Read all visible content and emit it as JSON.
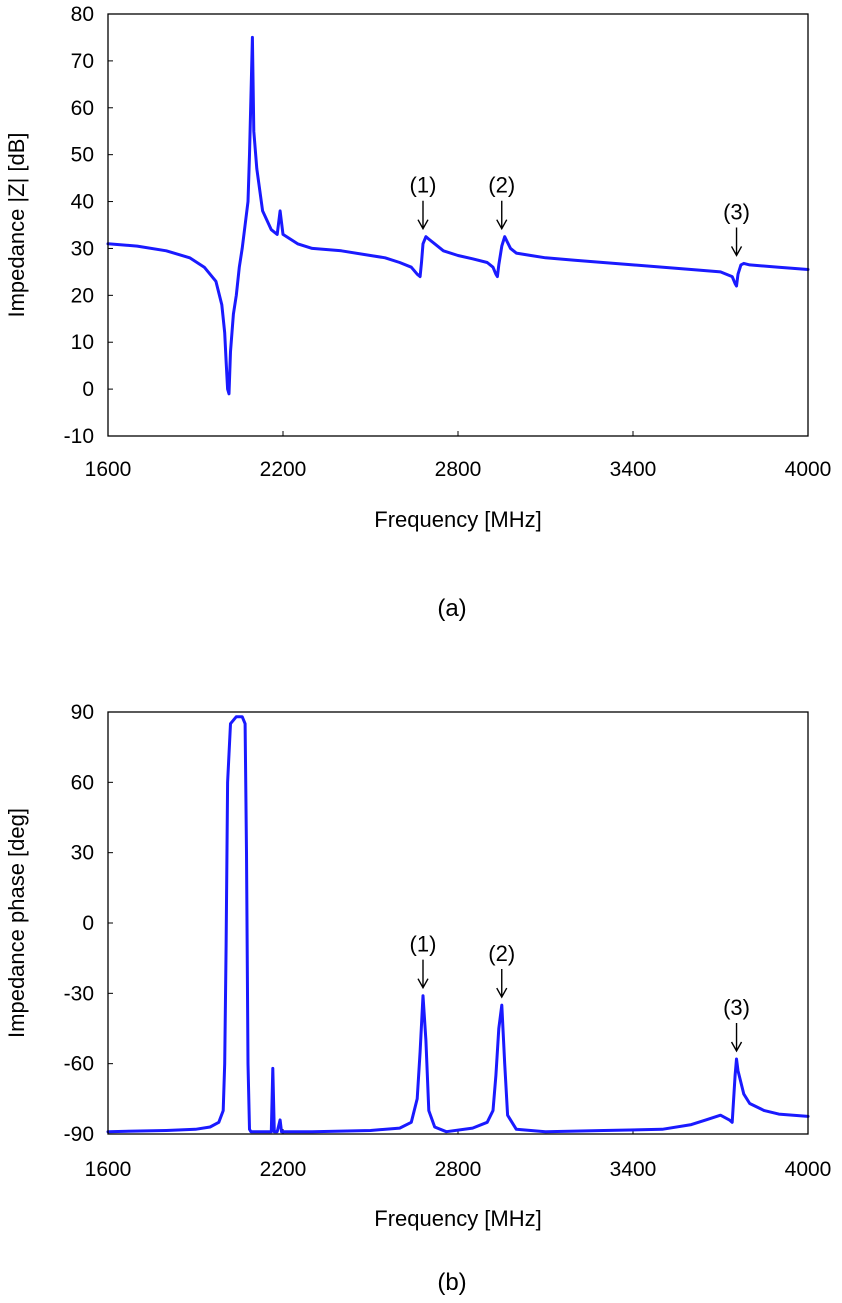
{
  "chart_data": [
    {
      "type": "line",
      "caption": "(a)",
      "xlabel": "Frequency [MHz]",
      "ylabel": "Impedance |Z| [dB]",
      "xlim": [
        1600,
        4000
      ],
      "ylim": [
        -10,
        80
      ],
      "xticks": [
        1600,
        2200,
        2800,
        3400,
        4000
      ],
      "yticks": [
        -10,
        0,
        10,
        20,
        30,
        40,
        50,
        60,
        70,
        80
      ],
      "grid": false,
      "line_color": "#1a1aff",
      "series": [
        {
          "x": [
            1600,
            1700,
            1800,
            1880,
            1930,
            1970,
            1990,
            2000,
            2005,
            2010,
            2015,
            2020,
            2030,
            2040,
            2050,
            2060,
            2070,
            2080,
            2085,
            2090,
            2095,
            2100,
            2110,
            2130,
            2160,
            2180,
            2190,
            2200,
            2250,
            2300,
            2400,
            2500,
            2550,
            2600,
            2640,
            2660,
            2670,
            2675,
            2680,
            2690,
            2700,
            2720,
            2750,
            2800,
            2850,
            2900,
            2920,
            2930,
            2935,
            2940,
            2950,
            2960,
            2980,
            3000,
            3050,
            3100,
            3200,
            3400,
            3600,
            3700,
            3740,
            3750,
            3755,
            3760,
            3770,
            3780,
            3800,
            3900,
            4000
          ],
          "y": [
            31,
            30.5,
            29.5,
            28,
            26,
            23,
            18,
            12,
            6,
            0,
            -1,
            8,
            16,
            20,
            26,
            30,
            35,
            40,
            50,
            62,
            75,
            55,
            47,
            38,
            34,
            33,
            38,
            33,
            31,
            30,
            29.5,
            28.5,
            28,
            27,
            26,
            24.5,
            24,
            27,
            31,
            32.5,
            32,
            31,
            29.5,
            28.5,
            27.8,
            27,
            26,
            24.5,
            24,
            26.5,
            30.5,
            32.5,
            30,
            29,
            28.5,
            28,
            27.5,
            26.5,
            25.5,
            25,
            24,
            22.5,
            22,
            24.5,
            26.5,
            26.8,
            26.5,
            26,
            25.5
          ]
        }
      ],
      "annotations": [
        {
          "label": "(1)",
          "x": 2680
        },
        {
          "label": "(2)",
          "x": 2950
        },
        {
          "label": "(3)",
          "x": 3755
        }
      ]
    },
    {
      "type": "line",
      "caption": "(b)",
      "xlabel": "Frequency [MHz]",
      "ylabel": "Impedance phase [deg]",
      "xlim": [
        1600,
        4000
      ],
      "ylim": [
        -90,
        90
      ],
      "xticks": [
        1600,
        2200,
        2800,
        3400,
        4000
      ],
      "yticks": [
        -90,
        -60,
        -30,
        0,
        30,
        60,
        90
      ],
      "grid": false,
      "line_color": "#1a1aff",
      "series": [
        {
          "x": [
            1600,
            1800,
            1900,
            1950,
            1980,
            1995,
            2000,
            2005,
            2010,
            2020,
            2040,
            2060,
            2070,
            2075,
            2080,
            2085,
            2090,
            2100,
            2150,
            2160,
            2165,
            2170,
            2175,
            2180,
            2190,
            2195,
            2200,
            2300,
            2500,
            2600,
            2640,
            2660,
            2670,
            2680,
            2690,
            2700,
            2720,
            2760,
            2850,
            2900,
            2920,
            2930,
            2940,
            2950,
            2960,
            2970,
            3000,
            3100,
            3300,
            3500,
            3600,
            3650,
            3700,
            3730,
            3740,
            3750,
            3755,
            3760,
            3780,
            3800,
            3850,
            3900,
            4000
          ],
          "y": [
            -89,
            -88.5,
            -88,
            -87,
            -85,
            -80,
            -60,
            -10,
            60,
            85,
            88,
            88,
            85,
            30,
            -60,
            -88,
            -89,
            -89,
            -89,
            -89,
            -62,
            -89,
            -89,
            -89,
            -84,
            -89,
            -89,
            -89,
            -88.5,
            -87.5,
            -85,
            -75,
            -55,
            -31,
            -50,
            -80,
            -87,
            -89,
            -87.5,
            -85,
            -80,
            -65,
            -45,
            -35,
            -60,
            -82,
            -88,
            -89,
            -88.5,
            -88,
            -86,
            -84,
            -82,
            -84,
            -85,
            -65,
            -58,
            -63,
            -73,
            -77,
            -80,
            -81.5,
            -82.5
          ]
        }
      ],
      "annotations": [
        {
          "label": "(1)",
          "x": 2680
        },
        {
          "label": "(2)",
          "x": 2950
        },
        {
          "label": "(3)",
          "x": 3755
        }
      ]
    }
  ]
}
